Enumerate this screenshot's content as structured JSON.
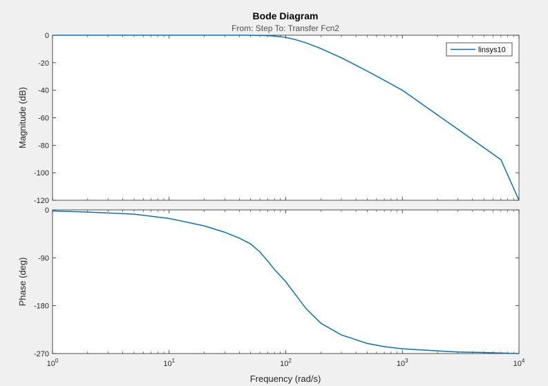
{
  "chart_data": {
    "type": "line",
    "title": "Bode Diagram",
    "subtitle": "From: Step  To: Transfer Fcn2",
    "xlabel": "Frequency  (rad/s)",
    "x_scale": "log",
    "xlim": [
      1,
      10000
    ],
    "x_ticks": [
      {
        "base": "10",
        "exp": "0"
      },
      {
        "base": "10",
        "exp": "1"
      },
      {
        "base": "10",
        "exp": "2"
      },
      {
        "base": "10",
        "exp": "3"
      },
      {
        "base": "10",
        "exp": "4"
      }
    ],
    "legend": {
      "entries": [
        "linsys10"
      ],
      "placement": "top-right"
    },
    "line_color": "#0072bd",
    "grid": false,
    "panels": [
      {
        "name": "magnitude",
        "ylabel": "Magnitude (dB)",
        "ylim": [
          -120,
          0
        ],
        "y_ticks": [
          "0",
          "-20",
          "-40",
          "-60",
          "-80",
          "-100",
          "-120"
        ],
        "series": {
          "x": [
            1,
            2,
            5,
            10,
            20,
            30,
            40,
            50,
            60,
            70,
            80,
            90,
            100,
            120,
            150,
            200,
            300,
            500,
            700,
            1000,
            2000,
            3000,
            5000,
            7000,
            10000
          ],
          "y": [
            0,
            0,
            0,
            0,
            0,
            -0.01,
            -0.03,
            -0.07,
            -0.16,
            -0.33,
            -0.62,
            -1.04,
            -1.6,
            -3.1,
            -5.6,
            -9.7,
            -16.4,
            -26.1,
            -32.8,
            -40.0,
            -58.0,
            -68.4,
            -81.7,
            -90.5,
            -120.0
          ]
        }
      },
      {
        "name": "phase",
        "ylabel": "Phase (deg)",
        "ylim": [
          -270,
          0
        ],
        "y_ticks": [
          "0",
          "-90",
          "-180",
          "-270"
        ],
        "series": {
          "x": [
            1,
            2,
            5,
            10,
            20,
            30,
            40,
            50,
            60,
            70,
            80,
            90,
            100,
            120,
            150,
            200,
            300,
            500,
            700,
            1000,
            2000,
            3000,
            5000,
            7000,
            10000
          ],
          "y": [
            -2,
            -4,
            -8,
            -16,
            -30,
            -42,
            -53,
            -64,
            -79,
            -96,
            -112,
            -124,
            -135,
            -158,
            -186,
            -213,
            -235,
            -251,
            -257,
            -261,
            -265,
            -267,
            -268,
            -269,
            -270
          ]
        }
      }
    ]
  }
}
